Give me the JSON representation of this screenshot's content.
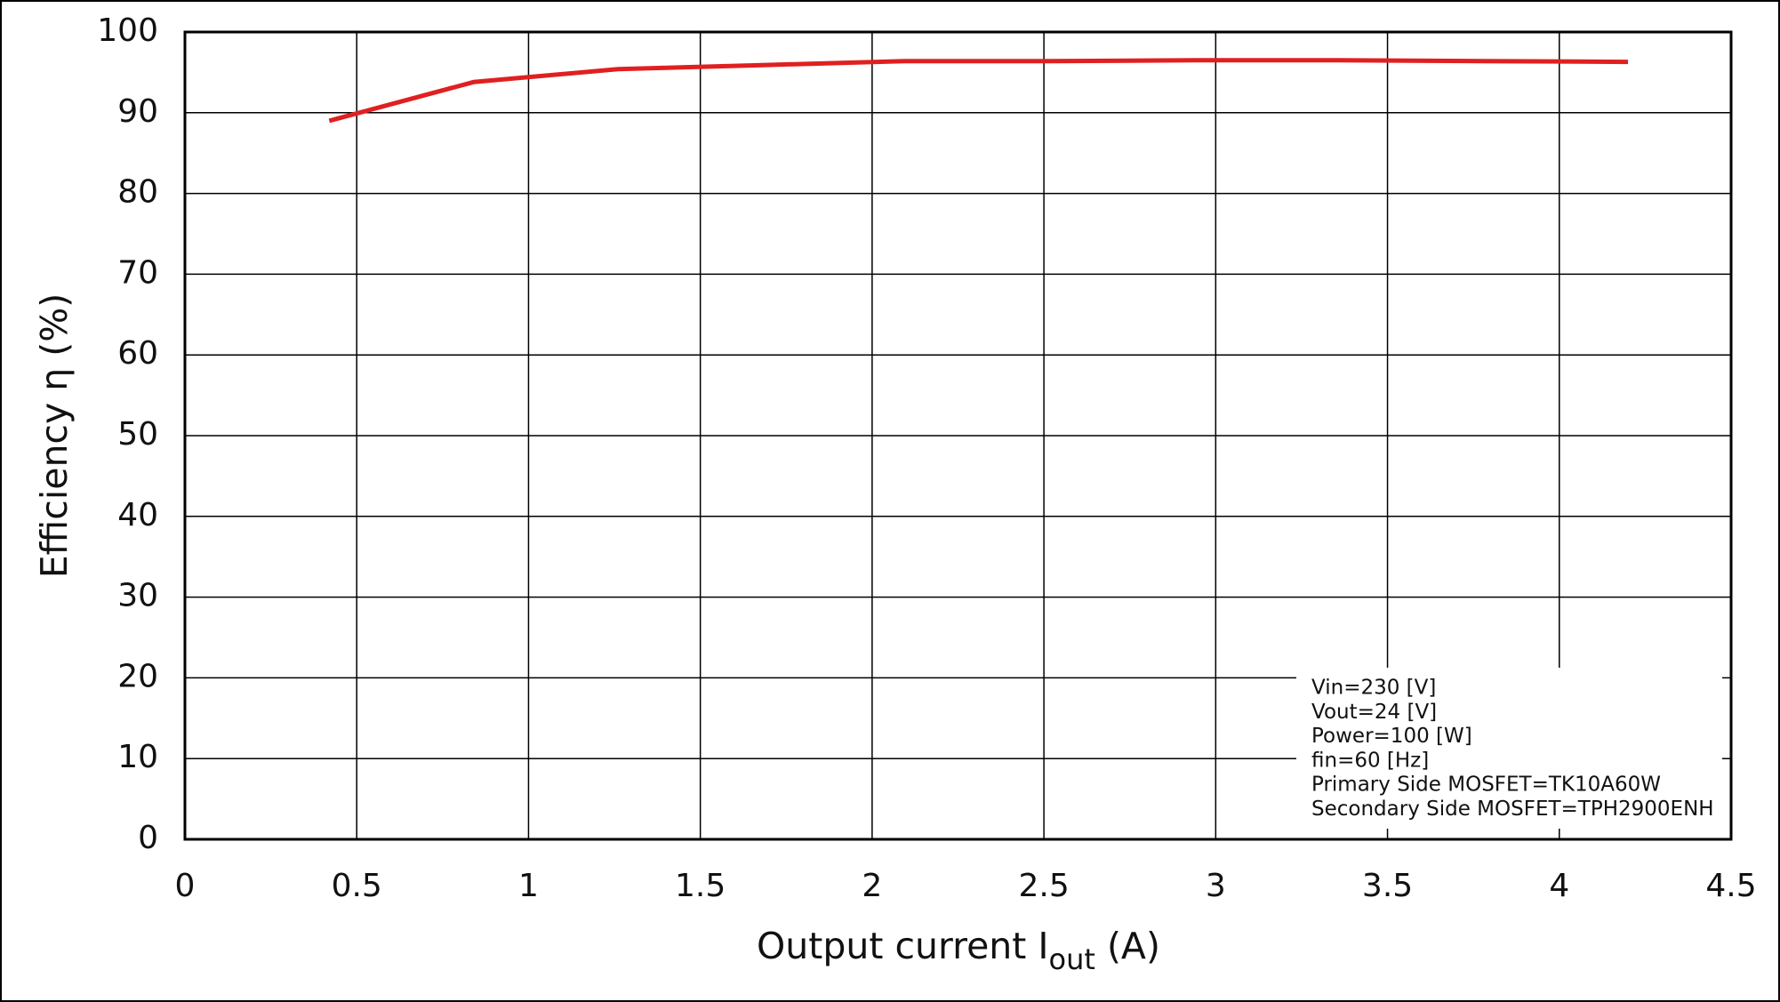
{
  "chart_data": {
    "type": "line",
    "ylabel": "Efficiency  η (%)",
    "xlabel_parts": [
      "Output current  I",
      "out",
      " (A)"
    ],
    "x": [
      0.42,
      0.84,
      1.26,
      1.68,
      2.1,
      2.52,
      2.94,
      3.36,
      3.78,
      4.2
    ],
    "series": [
      {
        "name": "Efficiency",
        "color": "#e02020",
        "values": [
          89,
          93.8,
          95.4,
          95.9,
          96.4,
          96.4,
          96.5,
          96.5,
          96.4,
          96.3
        ]
      }
    ],
    "xlim": [
      0,
      4.5
    ],
    "xticks": [
      0,
      0.5,
      1,
      1.5,
      2,
      2.5,
      3,
      3.5,
      4,
      4.5
    ],
    "ylim": [
      0,
      100
    ],
    "yticks": [
      0,
      10,
      20,
      30,
      40,
      50,
      60,
      70,
      80,
      90,
      100
    ],
    "grid": true,
    "annotation_lines": [
      "Vin=230 [V]",
      "Vout=24 [V]",
      "Power=100 [W]",
      "fin=60 [Hz]",
      "Primary Side MOSFET=TK10A60W",
      "Secondary Side MOSFET=TPH2900ENH"
    ]
  }
}
